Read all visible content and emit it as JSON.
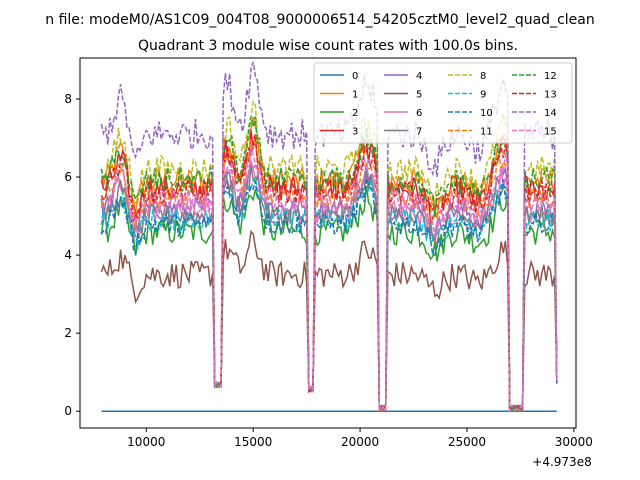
{
  "suptitle": "n file: modeM0/AS1C09_004T08_9000006514_54205cztM0_level2_quad_clean",
  "chart_data": {
    "type": "line",
    "title": "Quadrant 3 module wise count rates with 100.0s bins.",
    "xlabel": "",
    "ylabel": "",
    "x_offset_label": "+4.973e8",
    "xlim": [
      6900,
      30100
    ],
    "ylim": [
      -0.43,
      9.05
    ],
    "x_ticks": [
      10000,
      15000,
      20000,
      25000,
      30000
    ],
    "x_tick_labels": [
      "10000",
      "15000",
      "20000",
      "25000",
      "30000"
    ],
    "y_ticks": [
      0,
      2,
      4,
      6,
      8
    ],
    "y_tick_labels": [
      "0",
      "2",
      "4",
      "6",
      "8"
    ],
    "grid": false,
    "legend_position": "top-right",
    "legend_columns": 4,
    "series": [
      {
        "name": "0",
        "color": "#1f77b4",
        "style": "solid",
        "base": 0.0,
        "amp": 0.0
      },
      {
        "name": "1",
        "color": "#ff7f0e",
        "style": "solid",
        "base": 5.9,
        "amp": 0.35
      },
      {
        "name": "2",
        "color": "#2ca02c",
        "style": "solid",
        "base": 4.6,
        "amp": 0.35
      },
      {
        "name": "3",
        "color": "#d62728",
        "style": "solid",
        "base": 5.7,
        "amp": 0.35
      },
      {
        "name": "4",
        "color": "#9467bd",
        "style": "solid",
        "base": 5.2,
        "amp": 0.3
      },
      {
        "name": "5",
        "color": "#8c564b",
        "style": "solid",
        "base": 3.5,
        "amp": 0.35
      },
      {
        "name": "6",
        "color": "#e377c2",
        "style": "solid",
        "base": 5.1,
        "amp": 0.3
      },
      {
        "name": "7",
        "color": "#7f7f7f",
        "style": "solid",
        "base": 5.0,
        "amp": 0.3
      },
      {
        "name": "8",
        "color": "#bcbd22",
        "style": "dashed",
        "base": 6.2,
        "amp": 0.35
      },
      {
        "name": "9",
        "color": "#17becf",
        "style": "dashed",
        "base": 4.9,
        "amp": 0.3
      },
      {
        "name": "10",
        "color": "#1f77b4",
        "style": "dashed",
        "base": 4.8,
        "amp": 0.3
      },
      {
        "name": "11",
        "color": "#ff7f0e",
        "style": "dashed",
        "base": 5.5,
        "amp": 0.3
      },
      {
        "name": "12",
        "color": "#2ca02c",
        "style": "dashed",
        "base": 5.9,
        "amp": 0.35
      },
      {
        "name": "13",
        "color": "#d62728",
        "style": "dashed",
        "base": 5.6,
        "amp": 0.3
      },
      {
        "name": "14",
        "color": "#9467bd",
        "style": "dashed",
        "base": 7.1,
        "amp": 0.4
      },
      {
        "name": "15",
        "color": "#e377c2",
        "style": "dashed",
        "base": 5.4,
        "amp": 0.3
      }
    ],
    "x_start": 7900,
    "x_end": 29200,
    "x_step": 100,
    "dips": [
      {
        "center": 13350,
        "halfwidth": 150,
        "value": 0.6
      },
      {
        "center": 17700,
        "halfwidth": 100,
        "value": 0.5
      },
      {
        "center": 21050,
        "halfwidth": 200,
        "value": 0.0
      },
      {
        "center": 27300,
        "halfwidth": 300,
        "value": 0.0
      },
      {
        "center": 29200,
        "halfwidth": 60,
        "value": 0.7
      }
    ],
    "peaks": [
      {
        "center": 8800,
        "halfwidth": 400,
        "delta": 0.7
      },
      {
        "center": 13800,
        "halfwidth": 400,
        "delta": 1.0
      },
      {
        "center": 15000,
        "halfwidth": 400,
        "delta": 1.3
      },
      {
        "center": 20300,
        "halfwidth": 500,
        "delta": 1.0
      },
      {
        "center": 26700,
        "halfwidth": 500,
        "delta": 1.0
      }
    ],
    "troughs": [
      {
        "center": 9500,
        "halfwidth": 300,
        "delta": -0.6
      },
      {
        "center": 23500,
        "halfwidth": 500,
        "delta": -0.6
      },
      {
        "center": 25500,
        "halfwidth": 500,
        "delta": -0.3
      }
    ]
  }
}
